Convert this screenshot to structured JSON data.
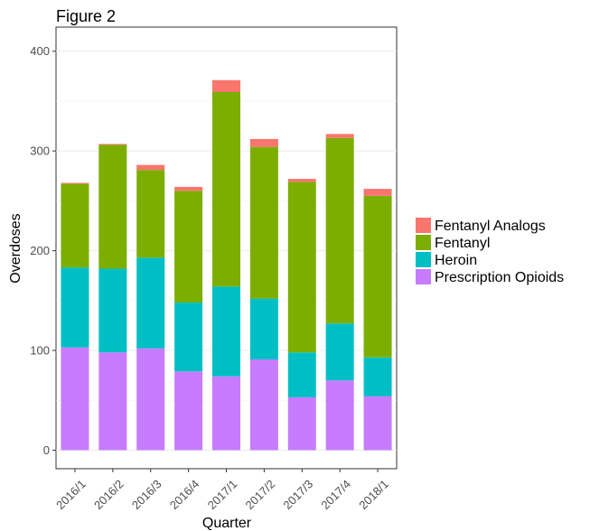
{
  "chart_data": {
    "type": "bar",
    "stacked": true,
    "title": "Figure 2",
    "xlabel": "Quarter",
    "ylabel": "Overdoses",
    "ylim": [
      -15,
      418
    ],
    "yticks": [
      0,
      100,
      200,
      300,
      400
    ],
    "grid": true,
    "legend_position": "right",
    "categories": [
      "2016/1",
      "2016/2",
      "2016/3",
      "2016/4",
      "2017/1",
      "2017/2",
      "2017/3",
      "2017/4",
      "2018/1"
    ],
    "series": [
      {
        "name": "Prescription Opioids",
        "color": "#C77CFF",
        "values": [
          103,
          98,
          102,
          79,
          74,
          91,
          53,
          70,
          54
        ]
      },
      {
        "name": "Heroin",
        "color": "#00BFC4",
        "values": [
          80,
          84,
          91,
          69,
          90,
          61,
          45,
          57,
          39
        ]
      },
      {
        "name": "Fentanyl",
        "color": "#7CAE00",
        "values": [
          84,
          124,
          88,
          112,
          195,
          152,
          171,
          186,
          162
        ]
      },
      {
        "name": "Fentanyl Analogs",
        "color": "#F8766D",
        "values": [
          1,
          1,
          5,
          4,
          12,
          8,
          3,
          4,
          7
        ]
      }
    ],
    "legend_order": [
      "Fentanyl Analogs",
      "Fentanyl",
      "Heroin",
      "Prescription Opioids"
    ]
  }
}
